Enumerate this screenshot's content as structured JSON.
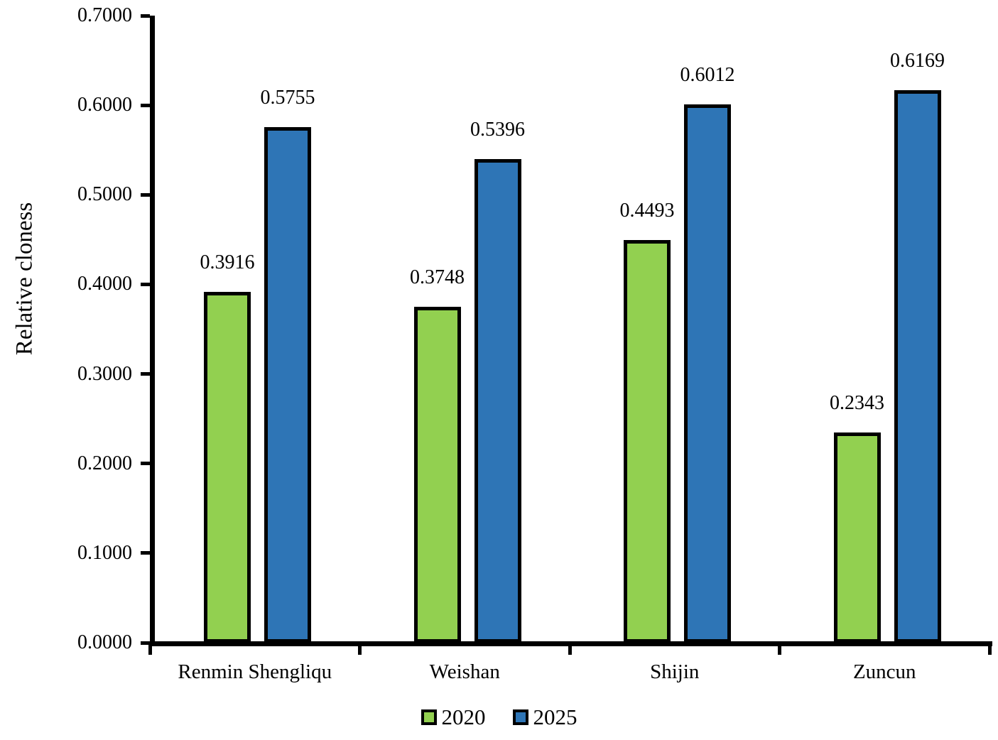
{
  "chart_data": {
    "type": "bar",
    "title": "",
    "xlabel": "",
    "ylabel": "Relative cloness",
    "categories": [
      "Renmin Shengliqu",
      "Weishan",
      "Shijin",
      "Zuncun"
    ],
    "series": [
      {
        "name": "2020",
        "color": "#92D050",
        "values": [
          0.3916,
          0.3748,
          0.4493,
          0.2343
        ]
      },
      {
        "name": "2025",
        "color": "#2E75B6",
        "values": [
          0.5755,
          0.5396,
          0.6012,
          0.6169
        ]
      }
    ],
    "data_labels": [
      [
        "0.3916",
        "0.3748",
        "0.4493",
        "0.2343"
      ],
      [
        "0.5755",
        "0.5396",
        "0.6012",
        "0.6169"
      ]
    ],
    "ylim": [
      0.0,
      0.7
    ],
    "ytick_step": 0.1,
    "ytick_labels": [
      "0.0000",
      "0.1000",
      "0.2000",
      "0.3000",
      "0.4000",
      "0.5000",
      "0.6000",
      "0.7000"
    ],
    "grid": false,
    "legend_position": "bottom",
    "bar_border_color": "#000000",
    "axis_color": "#000000"
  },
  "legend": {
    "items": [
      {
        "label": "2020",
        "color": "#92D050"
      },
      {
        "label": "2025",
        "color": "#2E75B6"
      }
    ]
  }
}
